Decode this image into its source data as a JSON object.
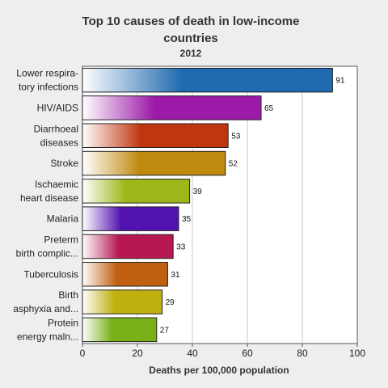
{
  "chart_data": {
    "type": "bar",
    "orientation": "horizontal",
    "title_lines": [
      "Top 10 causes of death in low-income",
      "countries"
    ],
    "subtitle": "2012",
    "xlabel": "Deaths per 100,000 population",
    "ylabel": "",
    "xlim": [
      0,
      100
    ],
    "xticks": [
      0,
      20,
      40,
      60,
      80,
      100
    ],
    "grid": true,
    "legend": "none",
    "categories": [
      [
        "Lower respira-",
        "tory infections"
      ],
      [
        "HIV/AIDS"
      ],
      [
        "Diarrhoeal",
        "diseases"
      ],
      [
        "Stroke"
      ],
      [
        "Ischaemic",
        "heart disease"
      ],
      [
        "Malaria"
      ],
      [
        "Preterm",
        "birth complic..."
      ],
      [
        "Tuberculosis"
      ],
      [
        "Birth",
        "asphyxia and..."
      ],
      [
        "Protein",
        "energy maln..."
      ]
    ],
    "values": [
      91,
      65,
      53,
      52,
      39,
      35,
      33,
      31,
      29,
      27
    ],
    "colors": [
      "#1f6ab0",
      "#9c1aa8",
      "#c0360e",
      "#c08a10",
      "#9cb818",
      "#5212b0",
      "#b81852",
      "#c06010",
      "#c0b010",
      "#7ab018"
    ]
  }
}
